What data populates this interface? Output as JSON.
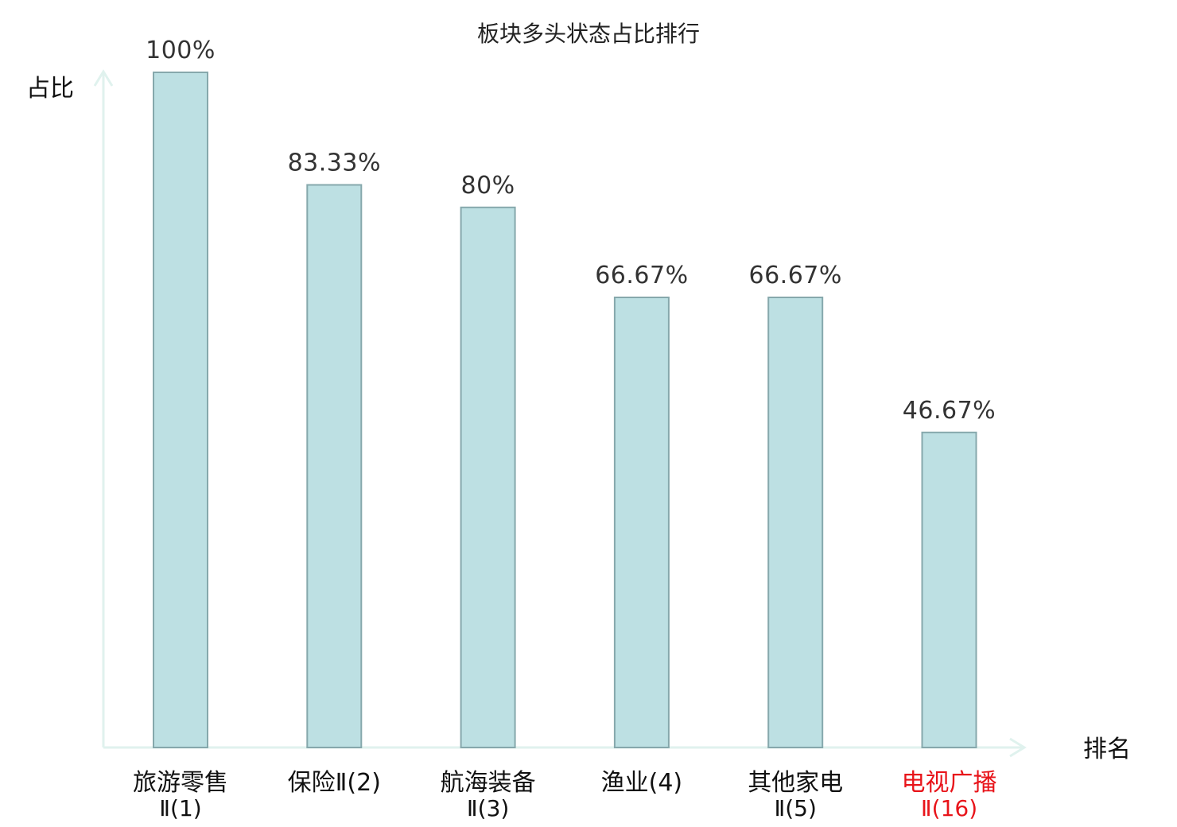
{
  "chart_data": {
    "type": "bar",
    "title": "板块多头状态占比排行",
    "ylabel": "占比",
    "xlabel": "排名",
    "ylim": [
      0,
      100
    ],
    "grid": false,
    "categories": [
      {
        "name": "旅游零售",
        "rank": "Ⅱ(1)",
        "highlight": false
      },
      {
        "name": "保险Ⅱ(2)",
        "rank": "",
        "highlight": false
      },
      {
        "name": "航海装备",
        "rank": "Ⅱ(3)",
        "highlight": false
      },
      {
        "name": "渔业(4)",
        "rank": "",
        "highlight": false
      },
      {
        "name": "其他家电",
        "rank": "Ⅱ(5)",
        "highlight": false
      },
      {
        "name": "电视广播",
        "rank": "Ⅱ(16)",
        "highlight": true
      }
    ],
    "values": [
      100,
      83.33,
      80,
      66.67,
      66.67,
      46.67
    ],
    "value_labels": [
      "100%",
      "83.33%",
      "80%",
      "66.67%",
      "66.67%",
      "46.67%"
    ]
  },
  "colors": {
    "bar_fill": "#bde0e3",
    "bar_stroke": "#86a8ac",
    "axis": "#e0f2ee",
    "text": "#111111",
    "highlight": "#e8141a"
  }
}
